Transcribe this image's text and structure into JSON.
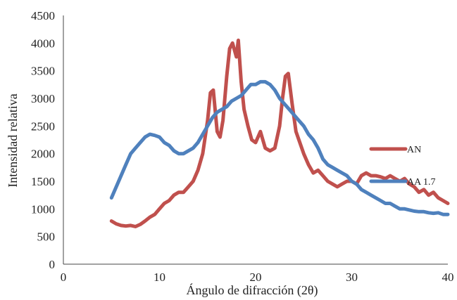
{
  "chart_data": {
    "type": "line",
    "title": "",
    "xlabel": "Ángulo de difracción (2θ)",
    "ylabel": "Intensidad relativa",
    "xlim": [
      0,
      40
    ],
    "ylim": [
      0,
      4500
    ],
    "xticks": [
      0,
      10,
      20,
      30,
      40
    ],
    "yticks": [
      0,
      500,
      1000,
      1500,
      2000,
      2500,
      3000,
      3500,
      4000,
      4500
    ],
    "grid": false,
    "legend": "right",
    "series": [
      {
        "name": "AN",
        "color": "#c0504d",
        "x": [
          5,
          5.5,
          6,
          6.5,
          7,
          7.5,
          8,
          8.5,
          9,
          9.5,
          10,
          10.5,
          11,
          11.5,
          12,
          12.5,
          13,
          13.5,
          14,
          14.5,
          15,
          15.3,
          15.6,
          16,
          16.3,
          16.6,
          17,
          17.3,
          17.6,
          18,
          18.2,
          18.5,
          18.8,
          19.2,
          19.6,
          20,
          20.5,
          21,
          21.5,
          22,
          22.5,
          22.8,
          23.1,
          23.4,
          23.8,
          24.2,
          24.6,
          25,
          25.5,
          26,
          26.5,
          27,
          27.5,
          28,
          28.5,
          29,
          29.5,
          30,
          30.5,
          31,
          31.5,
          32,
          32.5,
          33,
          33.5,
          34,
          34.5,
          35,
          35.5,
          36,
          36.5,
          37,
          37.5,
          38,
          38.5,
          39,
          39.5,
          40
        ],
        "y": [
          780,
          730,
          700,
          690,
          700,
          680,
          720,
          780,
          850,
          900,
          1000,
          1100,
          1150,
          1250,
          1300,
          1300,
          1400,
          1500,
          1700,
          2000,
          2600,
          3100,
          3150,
          2400,
          2300,
          2600,
          3400,
          3900,
          4000,
          3750,
          4050,
          3300,
          2800,
          2500,
          2250,
          2200,
          2400,
          2100,
          2050,
          2100,
          2500,
          3000,
          3400,
          3450,
          2900,
          2400,
          2200,
          2000,
          1800,
          1650,
          1700,
          1600,
          1500,
          1450,
          1400,
          1450,
          1500,
          1500,
          1450,
          1600,
          1650,
          1600,
          1600,
          1580,
          1550,
          1600,
          1550,
          1500,
          1550,
          1450,
          1400,
          1300,
          1350,
          1250,
          1300,
          1200,
          1150,
          1100
        ]
      },
      {
        "name": "AA 1.7",
        "color": "#4f81bd",
        "x": [
          5,
          5.5,
          6,
          6.5,
          7,
          7.5,
          8,
          8.5,
          9,
          9.5,
          10,
          10.5,
          11,
          11.5,
          12,
          12.5,
          13,
          13.5,
          14,
          14.5,
          15,
          15.5,
          16,
          16.5,
          17,
          17.5,
          18,
          18.5,
          19,
          19.5,
          20,
          20.5,
          21,
          21.5,
          22,
          22.5,
          23,
          23.5,
          24,
          24.5,
          25,
          25.5,
          26,
          26.5,
          27,
          27.5,
          28,
          28.5,
          29,
          29.5,
          30,
          30.5,
          31,
          31.5,
          32,
          32.5,
          33,
          33.5,
          34,
          34.5,
          35,
          35.5,
          36,
          36.5,
          37,
          37.5,
          38,
          38.5,
          39,
          39.5,
          40
        ],
        "y": [
          1200,
          1400,
          1600,
          1800,
          2000,
          2100,
          2200,
          2300,
          2350,
          2330,
          2300,
          2200,
          2150,
          2050,
          2000,
          2000,
          2050,
          2100,
          2200,
          2350,
          2500,
          2650,
          2750,
          2800,
          2850,
          2950,
          3000,
          3050,
          3150,
          3250,
          3250,
          3300,
          3300,
          3250,
          3150,
          3000,
          2900,
          2800,
          2700,
          2600,
          2500,
          2350,
          2250,
          2100,
          1900,
          1800,
          1750,
          1700,
          1650,
          1600,
          1500,
          1450,
          1350,
          1300,
          1250,
          1200,
          1150,
          1100,
          1100,
          1050,
          1000,
          1000,
          980,
          960,
          950,
          950,
          930,
          920,
          930,
          900,
          900
        ]
      }
    ]
  }
}
